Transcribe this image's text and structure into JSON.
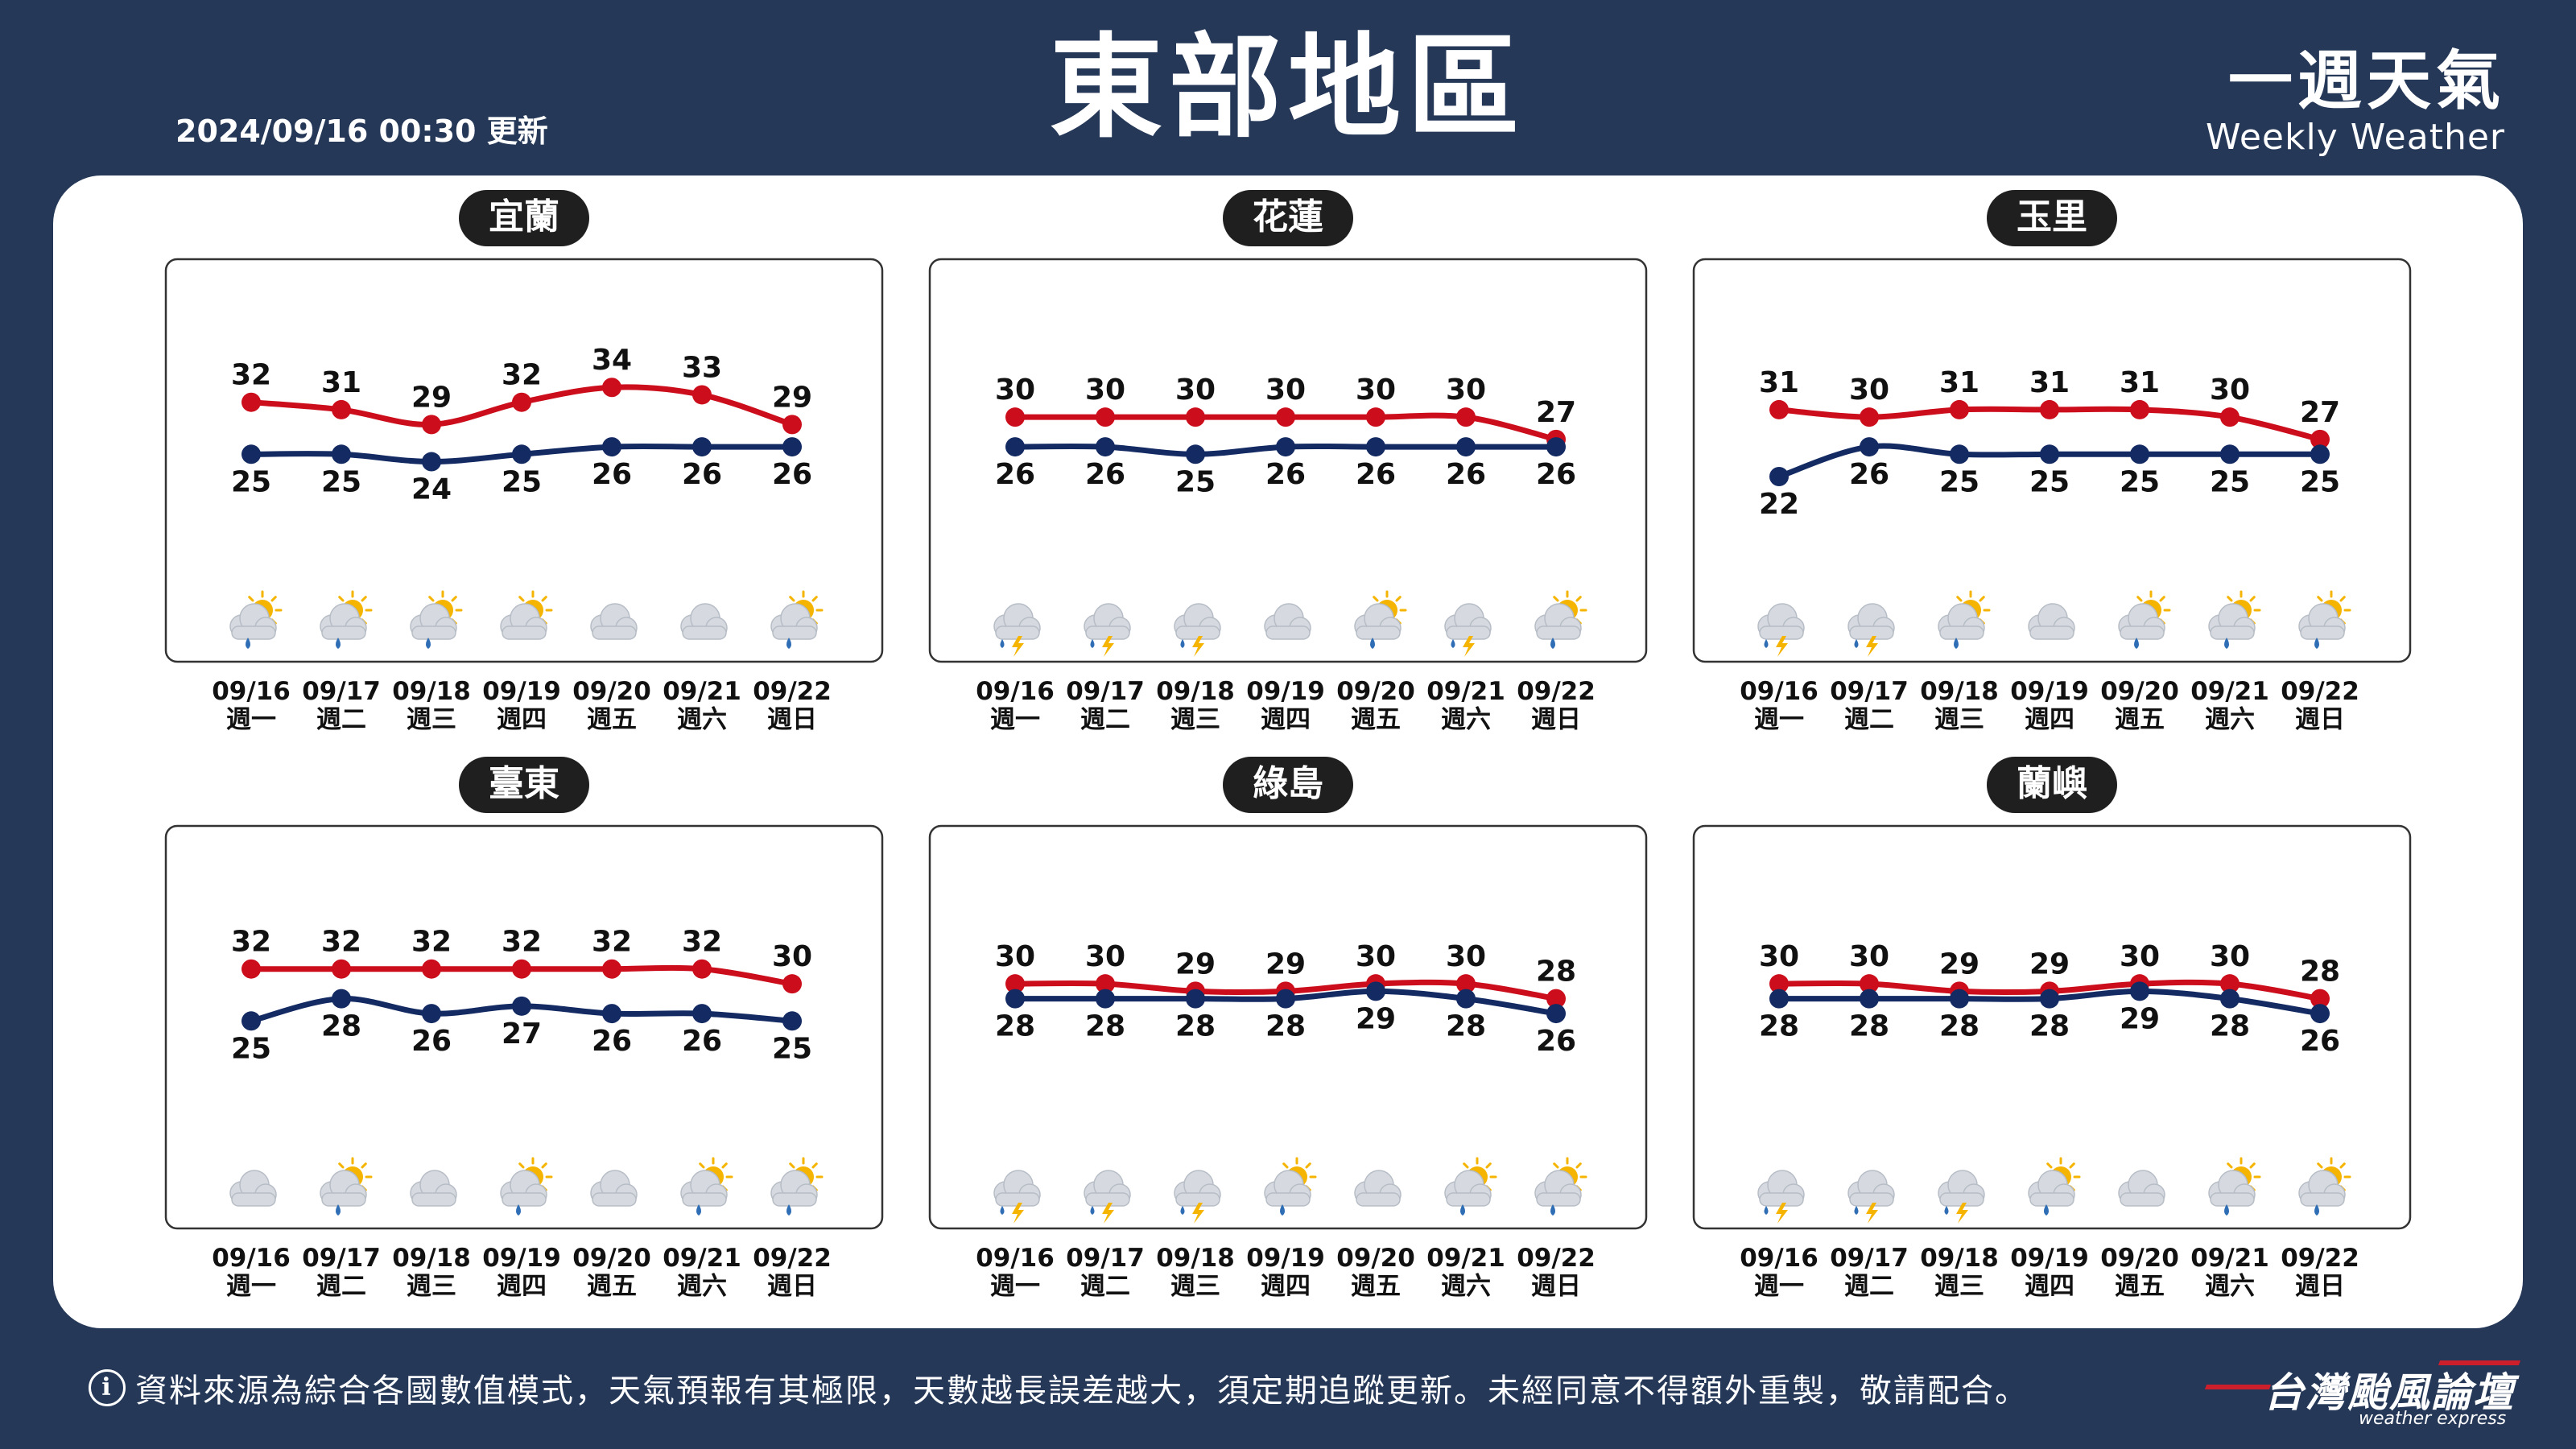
{
  "header": {
    "title": "東部地區",
    "update_time": "2024/09/16 00:30 更新",
    "brand_zh": "一週天氣",
    "brand_en": "Weekly Weather"
  },
  "footer": {
    "disclaimer": "資料來源為綜合各國數值模式，天氣預報有其極限，天數越長誤差越大，須定期追蹤更新。未經同意不得額外重製，敬請配合。",
    "info_icon": "info-icon",
    "logo_zh": "台灣颱風論壇",
    "logo_en": "weather express"
  },
  "colors": {
    "background": "#253858",
    "high_line": "#cc0e1c",
    "low_line": "#132a63",
    "badge": "#1f1f1f"
  },
  "chart_data": [
    {
      "type": "line",
      "title": "宜蘭",
      "x": [
        "09/16",
        "09/17",
        "09/18",
        "09/19",
        "09/20",
        "09/21",
        "09/22"
      ],
      "x_sub": [
        "週一",
        "週二",
        "週三",
        "週四",
        "週五",
        "週六",
        "週日"
      ],
      "series": [
        {
          "values": [
            32,
            31,
            29,
            32,
            34,
            33,
            29
          ]
        },
        {
          "values": [
            25,
            25,
            24,
            25,
            26,
            26,
            26
          ]
        }
      ],
      "weather_icons": [
        "sun-cloud-rain-icon",
        "sun-cloud-rain-icon",
        "sun-cloud-rain-icon",
        "sun-cloud-icon",
        "cloud-icon",
        "cloud-icon",
        "sun-cloud-rain-icon"
      ]
    },
    {
      "type": "line",
      "title": "花蓮",
      "x": [
        "09/16",
        "09/17",
        "09/18",
        "09/19",
        "09/20",
        "09/21",
        "09/22"
      ],
      "x_sub": [
        "週一",
        "週二",
        "週三",
        "週四",
        "週五",
        "週六",
        "週日"
      ],
      "series": [
        {
          "values": [
            30,
            30,
            30,
            30,
            30,
            30,
            27
          ]
        },
        {
          "values": [
            26,
            26,
            25,
            26,
            26,
            26,
            26
          ]
        }
      ],
      "weather_icons": [
        "thunderstorm-icon",
        "thunderstorm-icon",
        "thunderstorm-icon",
        "cloud-icon",
        "sun-cloud-rain-icon",
        "thunderstorm-icon",
        "sun-cloud-rain-icon"
      ]
    },
    {
      "type": "line",
      "title": "玉里",
      "x": [
        "09/16",
        "09/17",
        "09/18",
        "09/19",
        "09/20",
        "09/21",
        "09/22"
      ],
      "x_sub": [
        "週一",
        "週二",
        "週三",
        "週四",
        "週五",
        "週六",
        "週日"
      ],
      "series": [
        {
          "values": [
            31,
            30,
            31,
            31,
            31,
            30,
            27
          ]
        },
        {
          "values": [
            22,
            26,
            25,
            25,
            25,
            25,
            25
          ]
        }
      ],
      "weather_icons": [
        "thunderstorm-icon",
        "thunderstorm-icon",
        "sun-cloud-rain-icon",
        "cloud-icon",
        "sun-cloud-rain-icon",
        "sun-cloud-rain-icon",
        "sun-cloud-rain-icon"
      ]
    },
    {
      "type": "line",
      "title": "臺東",
      "x": [
        "09/16",
        "09/17",
        "09/18",
        "09/19",
        "09/20",
        "09/21",
        "09/22"
      ],
      "x_sub": [
        "週一",
        "週二",
        "週三",
        "週四",
        "週五",
        "週六",
        "週日"
      ],
      "series": [
        {
          "values": [
            32,
            32,
            32,
            32,
            32,
            32,
            30
          ]
        },
        {
          "values": [
            25,
            28,
            26,
            27,
            26,
            26,
            25
          ]
        }
      ],
      "weather_icons": [
        "cloud-icon",
        "sun-cloud-rain-icon",
        "cloud-icon",
        "sun-cloud-rain-icon",
        "cloud-icon",
        "sun-cloud-rain-icon",
        "sun-cloud-rain-icon"
      ]
    },
    {
      "type": "line",
      "title": "綠島",
      "x": [
        "09/16",
        "09/17",
        "09/18",
        "09/19",
        "09/20",
        "09/21",
        "09/22"
      ],
      "x_sub": [
        "週一",
        "週二",
        "週三",
        "週四",
        "週五",
        "週六",
        "週日"
      ],
      "series": [
        {
          "values": [
            30,
            30,
            29,
            29,
            30,
            30,
            28
          ]
        },
        {
          "values": [
            28,
            28,
            28,
            28,
            29,
            28,
            26
          ]
        }
      ],
      "weather_icons": [
        "thunderstorm-icon",
        "thunderstorm-icon",
        "thunderstorm-icon",
        "sun-cloud-rain-icon",
        "cloud-icon",
        "sun-cloud-rain-icon",
        "sun-cloud-rain-icon"
      ]
    },
    {
      "type": "line",
      "title": "蘭嶼",
      "x": [
        "09/16",
        "09/17",
        "09/18",
        "09/19",
        "09/20",
        "09/21",
        "09/22"
      ],
      "x_sub": [
        "週一",
        "週二",
        "週三",
        "週四",
        "週五",
        "週六",
        "週日"
      ],
      "series": [
        {
          "values": [
            30,
            30,
            29,
            29,
            30,
            30,
            28
          ]
        },
        {
          "values": [
            28,
            28,
            28,
            28,
            29,
            28,
            26
          ]
        }
      ],
      "weather_icons": [
        "thunderstorm-icon",
        "thunderstorm-icon",
        "thunderstorm-icon",
        "sun-cloud-rain-icon",
        "cloud-icon",
        "sun-cloud-rain-icon",
        "sun-cloud-rain-icon"
      ]
    }
  ]
}
